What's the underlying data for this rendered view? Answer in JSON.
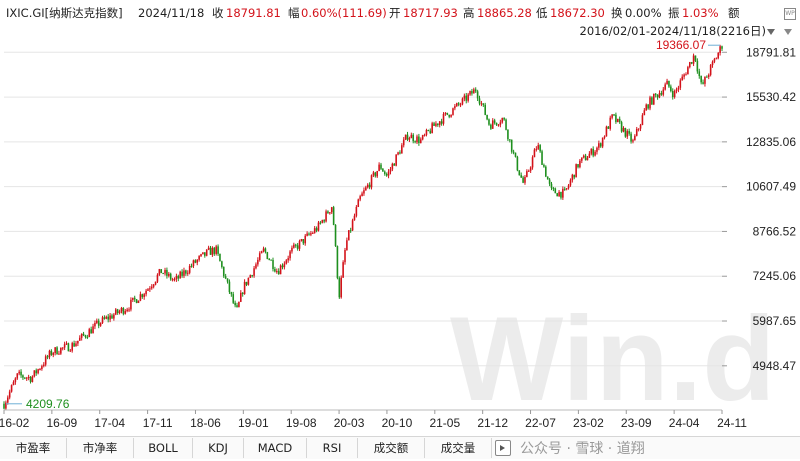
{
  "header": {
    "ticker": "IXIC.GI[纳斯达克指数]",
    "date": "2024/11/18",
    "close_label": "收",
    "close_value": "18791.81",
    "change_label": "幅",
    "change_value": "0.60%(111.69)",
    "open_label": "开",
    "open_value": "18717.93",
    "high_label": "高",
    "high_value": "18865.28",
    "low_label": "低",
    "low_value": "18672.30",
    "turnover_label": "换",
    "turnover_value": "0.00%",
    "amplitude_label": "振",
    "amplitude_value": "1.03%",
    "amount_label": "额",
    "range_text": "2016/02/01-2024/11/18(2216日)"
  },
  "toolbar": {
    "items": [
      "市盈率",
      "市净率",
      "BOLL",
      "KDJ",
      "MACD",
      "RSI",
      "成交额",
      "成交量"
    ],
    "watermark": "公众号 · 雪球 · 道翔"
  },
  "watermark": "Win.d",
  "colors": {
    "up": "#d3121a",
    "down": "#1e8f1e",
    "accent": "#d3121a",
    "min_label": "#1e8f1e",
    "grid": "#e5e5e5"
  },
  "chart_data": {
    "type": "candlestick",
    "series_name": "IXIC.GI[纳斯达克指数]",
    "x_ticks": [
      "16-02",
      "16-09",
      "17-04",
      "17-11",
      "18-06",
      "19-01",
      "19-08",
      "20-03",
      "20-10",
      "21-05",
      "21-12",
      "22-07",
      "23-02",
      "23-09",
      "24-04",
      "24-11"
    ],
    "y_ticks": [
      18791.81,
      15530.42,
      12835.06,
      10607.49,
      8766.52,
      7245.06,
      5987.65,
      4948.47
    ],
    "y_scale": "log",
    "ylim": [
      4100,
      19800
    ],
    "max_label": "19366.07",
    "min_label": "4209.76",
    "path": [
      [
        "16-02",
        4209.76
      ],
      [
        "16-04",
        4750
      ],
      [
        "16-06",
        4700
      ],
      [
        "16-09",
        5250
      ],
      [
        "16-12",
        5400
      ],
      [
        "17-04",
        5950
      ],
      [
        "17-08",
        6350
      ],
      [
        "17-11",
        6870
      ],
      [
        "18-01",
        7400
      ],
      [
        "18-03",
        7100
      ],
      [
        "18-06",
        7700
      ],
      [
        "18-08",
        8050
      ],
      [
        "18-09",
        8100
      ],
      [
        "18-12",
        6200
      ],
      [
        "19-01",
        6900
      ],
      [
        "19-04",
        8100
      ],
      [
        "19-06",
        7400
      ],
      [
        "19-08",
        8050
      ],
      [
        "19-12",
        8950
      ],
      [
        "20-02",
        9800
      ],
      [
        "20-03",
        6650
      ],
      [
        "20-04",
        8300
      ],
      [
        "20-06",
        10050
      ],
      [
        "20-09",
        11600
      ],
      [
        "20-10",
        11100
      ],
      [
        "21-01",
        13200
      ],
      [
        "21-03",
        12900
      ],
      [
        "21-05",
        13800
      ],
      [
        "21-09",
        15200
      ],
      [
        "21-11",
        16050
      ],
      [
        "22-01",
        13800
      ],
      [
        "22-03",
        14200
      ],
      [
        "22-05",
        11600
      ],
      [
        "22-06",
        10700
      ],
      [
        "22-08",
        12700
      ],
      [
        "22-10",
        10400
      ],
      [
        "22-12",
        10300
      ],
      [
        "23-02",
        11700
      ],
      [
        "23-05",
        12600
      ],
      [
        "23-07",
        14300
      ],
      [
        "23-10",
        12800
      ],
      [
        "23-12",
        15000
      ],
      [
        "24-03",
        16400
      ],
      [
        "24-04",
        15700
      ],
      [
        "24-07",
        18650
      ],
      [
        "24-08",
        16200
      ],
      [
        "24-11",
        19366.07
      ],
      [
        "24-11",
        18791.81
      ]
    ]
  }
}
